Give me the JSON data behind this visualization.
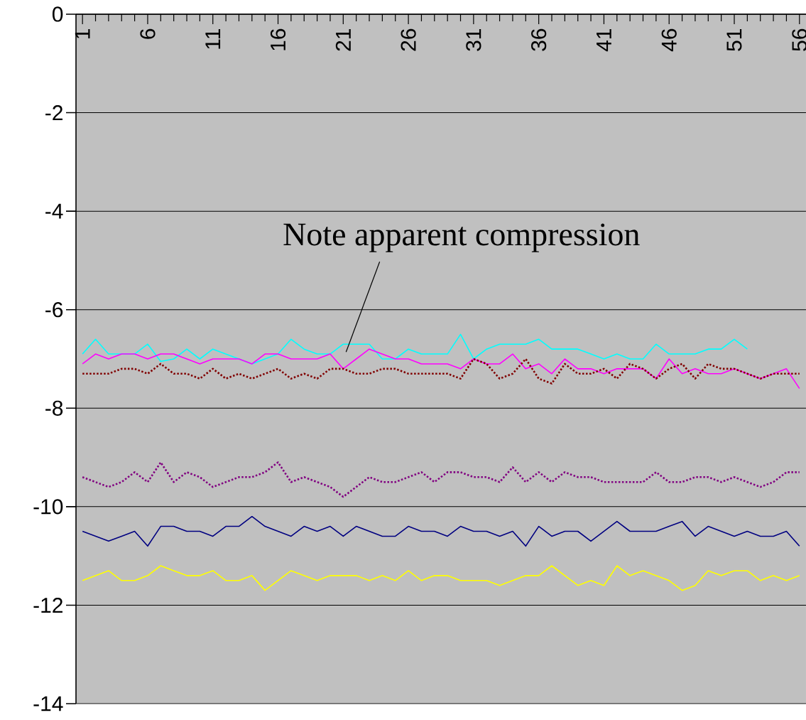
{
  "chart_data": {
    "type": "line",
    "x": [
      1,
      2,
      3,
      4,
      5,
      6,
      7,
      8,
      9,
      10,
      11,
      12,
      13,
      14,
      15,
      16,
      17,
      18,
      19,
      20,
      21,
      22,
      23,
      24,
      25,
      26,
      27,
      28,
      29,
      30,
      31,
      32,
      33,
      34,
      35,
      36,
      37,
      38,
      39,
      40,
      41,
      42,
      43,
      44,
      45,
      46,
      47,
      48,
      49,
      50,
      51,
      52,
      53,
      54,
      55,
      56
    ],
    "xlim": [
      0.5,
      56.5
    ],
    "xticks": [
      1,
      6,
      11,
      16,
      21,
      26,
      31,
      36,
      41,
      46,
      51,
      56
    ],
    "ylim": [
      -14,
      0
    ],
    "yticks": [
      0,
      -2,
      -4,
      -6,
      -8,
      -10,
      -12,
      -14
    ],
    "grid": "y",
    "series": [
      {
        "color": "#00ffff",
        "line_style": "solid",
        "values": [
          -6.9,
          -6.6,
          -6.9,
          -6.9,
          -6.9,
          -6.7,
          -7.05,
          -7.0,
          -6.8,
          -7.0,
          -6.8,
          -6.9,
          -7.0,
          -7.1,
          -7.0,
          -6.9,
          -6.6,
          -6.8,
          -6.9,
          -6.9,
          -6.7,
          -6.7,
          -6.7,
          -7.0,
          -7.0,
          -6.8,
          -6.9,
          -6.9,
          -6.9,
          -6.5,
          -7.0,
          -6.8,
          -6.7,
          -6.7,
          -6.7,
          -6.6,
          -6.8,
          -6.8,
          -6.8,
          -6.9,
          -7.0,
          -6.9,
          -7.0,
          -7.0,
          -6.7,
          -6.9,
          -6.9,
          -6.9,
          -6.8,
          -6.8,
          -6.6,
          -6.8,
          null,
          null,
          null,
          null
        ]
      },
      {
        "color": "#ff00ff",
        "line_style": "solid",
        "values": [
          -7.1,
          -6.9,
          -7.0,
          -6.9,
          -6.9,
          -7.0,
          -6.9,
          -6.9,
          -7.0,
          -7.1,
          -7.0,
          -7.0,
          -7.0,
          -7.1,
          -6.9,
          -6.9,
          -7.0,
          -7.0,
          -7.0,
          -6.9,
          -7.2,
          -7.0,
          -6.8,
          -6.9,
          -7.0,
          -7.0,
          -7.1,
          -7.1,
          -7.1,
          -7.2,
          -7.0,
          -7.1,
          -7.1,
          -6.9,
          -7.2,
          -7.1,
          -7.3,
          -7.0,
          -7.2,
          -7.2,
          -7.3,
          -7.2,
          -7.2,
          -7.2,
          -7.4,
          -7.0,
          -7.3,
          -7.2,
          -7.3,
          -7.3,
          -7.2,
          -7.3,
          -7.4,
          -7.3,
          -7.2,
          -7.6
        ]
      },
      {
        "color": "#800000",
        "line_style": "dotted",
        "values": [
          -7.3,
          -7.3,
          -7.3,
          -7.2,
          -7.2,
          -7.3,
          -7.1,
          -7.3,
          -7.3,
          -7.4,
          -7.2,
          -7.4,
          -7.3,
          -7.4,
          -7.3,
          -7.2,
          -7.4,
          -7.3,
          -7.4,
          -7.2,
          -7.2,
          -7.3,
          -7.3,
          -7.2,
          -7.2,
          -7.3,
          -7.3,
          -7.3,
          -7.3,
          -7.4,
          -7.0,
          -7.1,
          -7.4,
          -7.3,
          -7.0,
          -7.4,
          -7.5,
          -7.1,
          -7.3,
          -7.3,
          -7.2,
          -7.4,
          -7.1,
          -7.2,
          -7.4,
          -7.2,
          -7.1,
          -7.4,
          -7.1,
          -7.2,
          -7.2,
          -7.3,
          -7.4,
          -7.3,
          -7.3,
          -7.3
        ]
      },
      {
        "color": "#800080",
        "line_style": "dotted",
        "values": [
          -9.4,
          -9.5,
          -9.6,
          -9.5,
          -9.3,
          -9.5,
          -9.1,
          -9.5,
          -9.3,
          -9.4,
          -9.6,
          -9.5,
          -9.4,
          -9.4,
          -9.3,
          -9.1,
          -9.5,
          -9.4,
          -9.5,
          -9.6,
          -9.8,
          -9.6,
          -9.4,
          -9.5,
          -9.5,
          -9.4,
          -9.3,
          -9.5,
          -9.3,
          -9.3,
          -9.4,
          -9.4,
          -9.5,
          -9.2,
          -9.5,
          -9.3,
          -9.5,
          -9.3,
          -9.4,
          -9.4,
          -9.5,
          -9.5,
          -9.5,
          -9.5,
          -9.3,
          -9.5,
          -9.5,
          -9.4,
          -9.4,
          -9.5,
          -9.4,
          -9.5,
          -9.6,
          -9.5,
          -9.3,
          -9.3
        ]
      },
      {
        "color": "#000080",
        "line_style": "solid",
        "values": [
          -10.5,
          -10.6,
          -10.7,
          -10.6,
          -10.5,
          -10.8,
          -10.4,
          -10.4,
          -10.5,
          -10.5,
          -10.6,
          -10.4,
          -10.4,
          -10.2,
          -10.4,
          -10.5,
          -10.6,
          -10.4,
          -10.5,
          -10.4,
          -10.6,
          -10.4,
          -10.5,
          -10.6,
          -10.6,
          -10.4,
          -10.5,
          -10.5,
          -10.6,
          -10.4,
          -10.5,
          -10.5,
          -10.6,
          -10.5,
          -10.8,
          -10.4,
          -10.6,
          -10.5,
          -10.5,
          -10.7,
          -10.5,
          -10.3,
          -10.5,
          -10.5,
          -10.5,
          -10.4,
          -10.3,
          -10.6,
          -10.4,
          -10.5,
          -10.6,
          -10.5,
          -10.6,
          -10.6,
          -10.5,
          -10.8
        ]
      },
      {
        "color": "#ffff00",
        "line_style": "solid",
        "values": [
          -11.5,
          -11.4,
          -11.3,
          -11.5,
          -11.5,
          -11.4,
          -11.2,
          -11.3,
          -11.4,
          -11.4,
          -11.3,
          -11.5,
          -11.5,
          -11.4,
          -11.7,
          -11.5,
          -11.3,
          -11.4,
          -11.5,
          -11.4,
          -11.4,
          -11.4,
          -11.5,
          -11.4,
          -11.5,
          -11.3,
          -11.5,
          -11.4,
          -11.4,
          -11.5,
          -11.5,
          -11.5,
          -11.6,
          -11.5,
          -11.4,
          -11.4,
          -11.2,
          -11.4,
          -11.6,
          -11.5,
          -11.6,
          -11.2,
          -11.4,
          -11.3,
          -11.4,
          -11.5,
          -11.7,
          -11.6,
          -11.3,
          -11.4,
          -11.3,
          -11.3,
          -11.5,
          -11.4,
          -11.5,
          -11.4
        ]
      }
    ],
    "annotations": [
      "Note apparent compression"
    ]
  }
}
